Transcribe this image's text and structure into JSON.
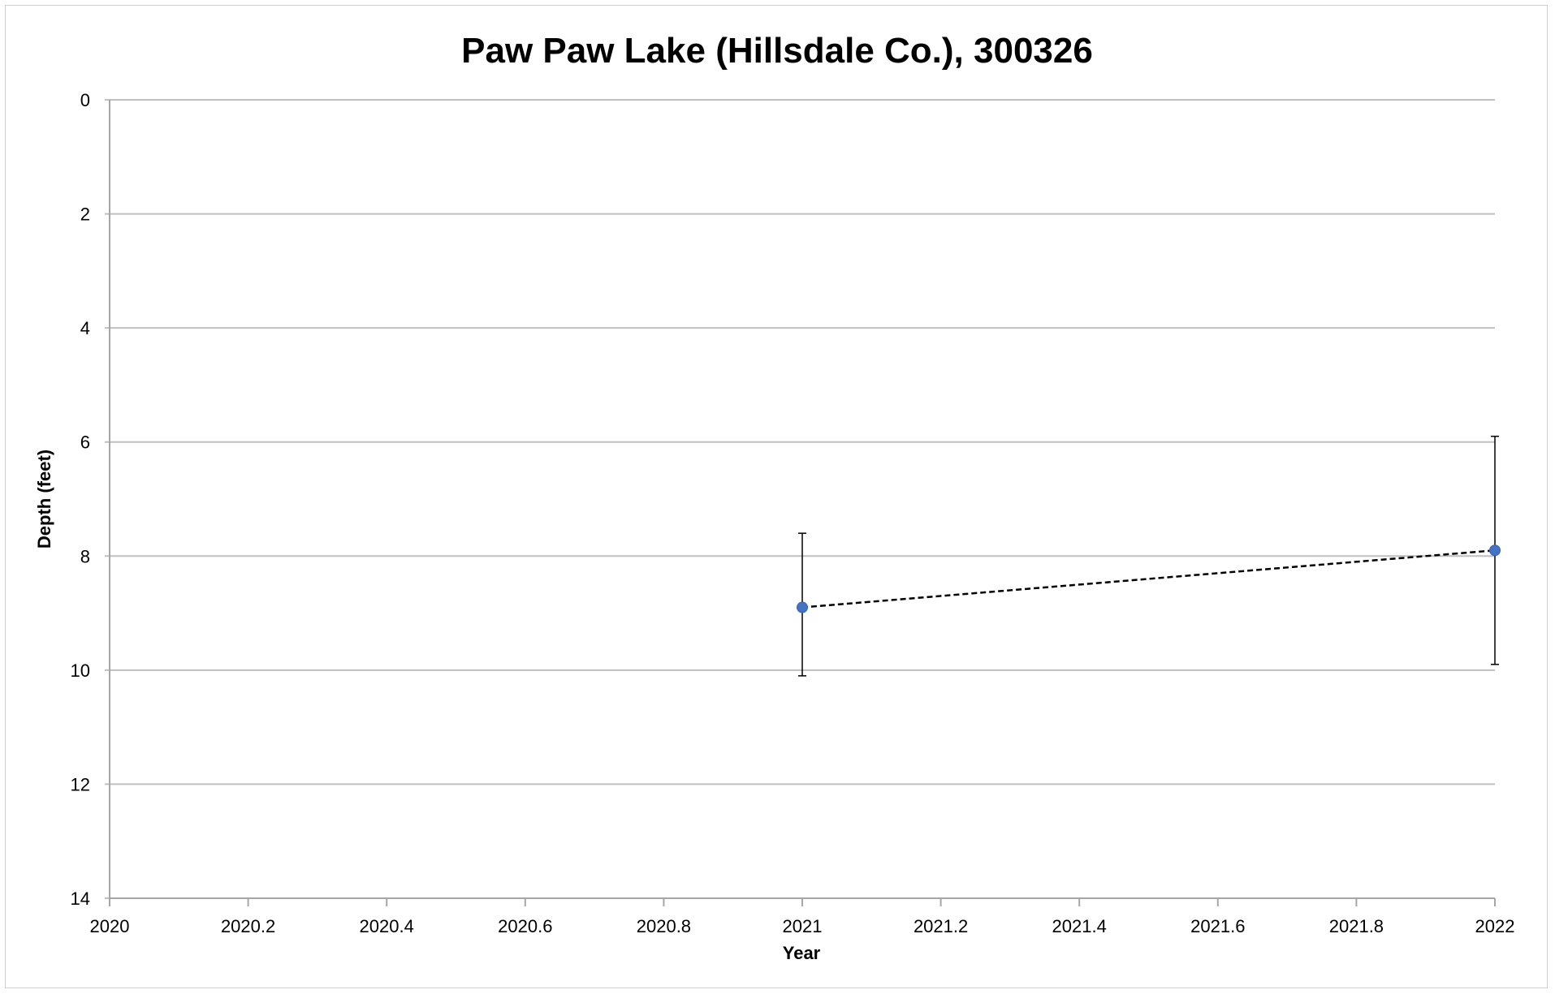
{
  "chart_data": {
    "type": "scatter",
    "title": "Paw Paw Lake (Hillsdale Co.), 300326",
    "xlabel": "Year",
    "ylabel": "Depth (feet)",
    "xlim": [
      2020,
      2022
    ],
    "ylim": [
      0,
      14
    ],
    "y_reversed": true,
    "grid": "horizontal",
    "x_ticks": [
      2020,
      2020.2,
      2020.4,
      2020.6,
      2020.8,
      2021,
      2021.2,
      2021.4,
      2021.6,
      2021.8,
      2022
    ],
    "x_tick_labels": [
      "2020",
      "2020.2",
      "2020.4",
      "2020.6",
      "2020.8",
      "2021",
      "2021.2",
      "2021.4",
      "2021.6",
      "2021.8",
      "2022"
    ],
    "y_ticks": [
      0,
      2,
      4,
      6,
      8,
      10,
      12,
      14
    ],
    "y_tick_labels": [
      "0",
      "2",
      "4",
      "6",
      "8",
      "10",
      "12",
      "14"
    ],
    "series": [
      {
        "x": [
          2021,
          2022
        ],
        "y": [
          8.9,
          7.9
        ],
        "error_low": [
          10.1,
          9.9
        ],
        "error_high": [
          7.6,
          5.9
        ],
        "marker_color": "#4472C4",
        "line_style": "dashed",
        "line_color": "#000000"
      }
    ]
  }
}
